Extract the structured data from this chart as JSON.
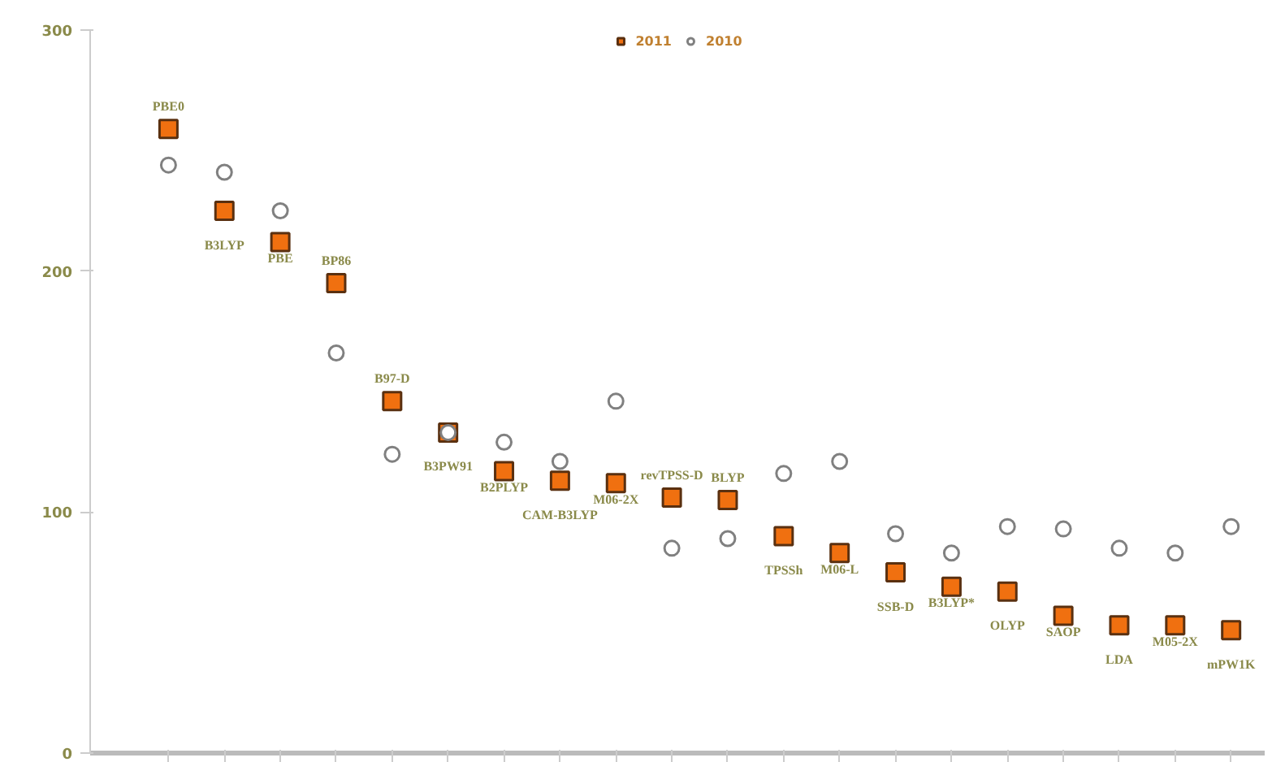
{
  "chart_data": {
    "type": "scatter",
    "categories": [
      "PBE0",
      "B3LYP",
      "PBE",
      "BP86",
      "B97-D",
      "B3PW91",
      "B2PLYP",
      "CAM-B3LYP",
      "M06-2X",
      "revTPSS-D",
      "BLYP",
      "TPSSh",
      "M06-L",
      "SSB-D",
      "B3LYP*",
      "OLYP",
      "SAOP",
      "LDA",
      "M05-2X",
      "mPW1K"
    ],
    "series": [
      {
        "name": "2011",
        "color": "#f07010",
        "marker": "square",
        "values": [
          259,
          225,
          212,
          195,
          146,
          133,
          117,
          113,
          112,
          106,
          105,
          90,
          83,
          75,
          69,
          67,
          57,
          53,
          53,
          51
        ]
      },
      {
        "name": "2010",
        "color": "#808080",
        "marker": "circle",
        "values": [
          244,
          241,
          225,
          166,
          124,
          133,
          129,
          121,
          146,
          85,
          89,
          116,
          121,
          91,
          83,
          94,
          93,
          85,
          83,
          94
        ]
      }
    ],
    "ylim": [
      0,
      300
    ],
    "yticks": [
      0,
      100,
      200,
      300
    ],
    "grid": false,
    "legend": "top",
    "tick_labels": "y"
  }
}
